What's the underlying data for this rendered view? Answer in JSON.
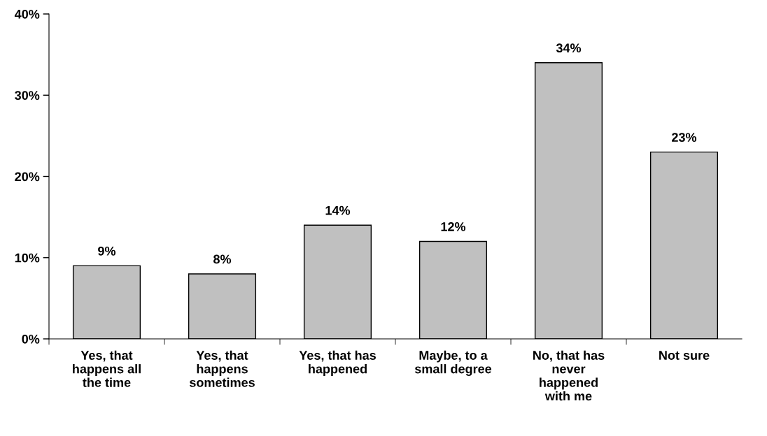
{
  "chart_data": {
    "type": "bar",
    "categories": [
      "Yes, that\nhappens all\nthe time",
      "Yes, that\nhappens\nsometimes",
      "Yes, that has\nhappened",
      "Maybe, to a\nsmall degree",
      "No, that has\nnever\nhappened\nwith me",
      "Not sure"
    ],
    "values": [
      9,
      8,
      14,
      12,
      34,
      23
    ],
    "value_labels": [
      "9%",
      "8%",
      "14%",
      "12%",
      "34%",
      "23%"
    ],
    "color": "#c0c0c0",
    "ylim": [
      0,
      40
    ],
    "yticks": [
      {
        "value": 0,
        "label": "0%"
      },
      {
        "value": 10,
        "label": "10%"
      },
      {
        "value": 20,
        "label": "20%"
      },
      {
        "value": 30,
        "label": "30%"
      },
      {
        "value": 40,
        "label": "40%"
      }
    ],
    "grid": false,
    "legend": false
  }
}
